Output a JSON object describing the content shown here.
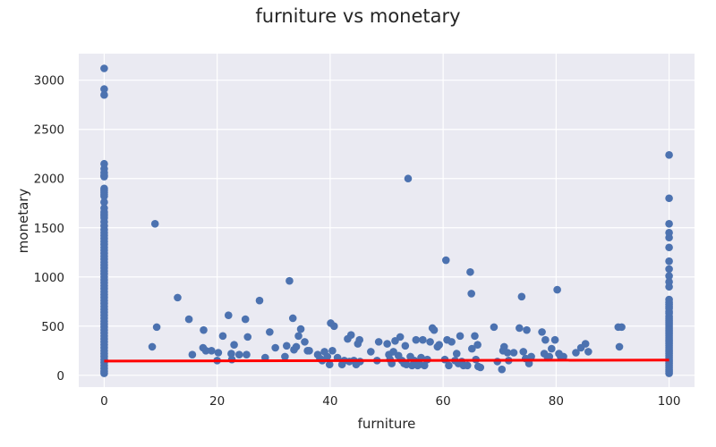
{
  "chart_data": {
    "type": "scatter",
    "title": "furniture vs monetary",
    "xlabel": "furniture",
    "ylabel": "monetary",
    "xlim": [
      -4.5,
      104.5
    ],
    "ylim": [
      -120,
      3270
    ],
    "xticks": [
      0,
      20,
      40,
      60,
      80,
      100
    ],
    "yticks": [
      0,
      500,
      1000,
      1500,
      2000,
      2500,
      3000
    ],
    "grid": true,
    "colors": {
      "background": "#eaeaf2",
      "grid": "#ffffff",
      "points": "#4c72b0",
      "line": "#ff0000"
    },
    "series": [
      {
        "kind": "points",
        "x_zero_y": [
          3120,
          2910,
          2850,
          2150,
          2100,
          2060,
          2030,
          2020,
          1900,
          1880,
          1860,
          1840,
          1820,
          1760,
          1700,
          1660,
          1640,
          1620,
          1600,
          1560,
          1520,
          1480,
          1450,
          1420,
          1390,
          1360,
          1330,
          1300,
          1270,
          1240,
          1210,
          1180,
          1150,
          1120,
          1090,
          1060,
          1030,
          1000,
          970,
          940,
          910,
          880,
          850,
          820,
          790,
          760,
          730,
          700,
          670,
          640,
          610,
          580,
          550,
          520,
          490,
          460,
          430,
          400,
          370,
          340,
          310,
          280,
          250,
          220,
          190,
          160,
          130,
          100,
          70,
          40,
          20
        ],
        "x_hundred_y": [
          2240,
          1800,
          1540,
          1450,
          1400,
          1300,
          1160,
          1080,
          1010,
          950,
          900,
          770,
          740,
          720,
          700,
          680,
          650,
          630,
          600,
          580,
          560,
          540,
          520,
          500,
          480,
          460,
          440,
          420,
          400,
          380,
          360,
          340,
          320,
          300,
          280,
          260,
          240,
          220,
          200,
          180,
          160,
          140,
          120,
          100,
          80,
          60,
          40,
          20
        ],
        "xy": [
          [
            9,
            1540
          ],
          [
            8.5,
            290
          ],
          [
            9.3,
            490
          ],
          [
            13,
            790
          ],
          [
            15,
            570
          ],
          [
            15.6,
            210
          ],
          [
            17.5,
            280
          ],
          [
            17.6,
            460
          ],
          [
            18,
            250
          ],
          [
            19,
            250
          ],
          [
            20,
            150
          ],
          [
            20.2,
            230
          ],
          [
            21,
            400
          ],
          [
            22,
            610
          ],
          [
            22.5,
            220
          ],
          [
            22.6,
            160
          ],
          [
            23,
            310
          ],
          [
            23.9,
            210
          ],
          [
            25,
            570
          ],
          [
            25.2,
            210
          ],
          [
            25.4,
            390
          ],
          [
            27.5,
            760
          ],
          [
            28.5,
            180
          ],
          [
            29.3,
            440
          ],
          [
            30.3,
            280
          ],
          [
            32,
            190
          ],
          [
            32.3,
            300
          ],
          [
            32.8,
            960
          ],
          [
            33.4,
            580
          ],
          [
            33.6,
            260
          ],
          [
            34,
            290
          ],
          [
            34.4,
            400
          ],
          [
            34.8,
            470
          ],
          [
            35.5,
            340
          ],
          [
            36,
            250
          ],
          [
            36.3,
            250
          ],
          [
            37.8,
            210
          ],
          [
            38.2,
            170
          ],
          [
            38.6,
            150
          ],
          [
            39,
            240
          ],
          [
            39.5,
            190
          ],
          [
            39.9,
            110
          ],
          [
            40.1,
            530
          ],
          [
            40.4,
            250
          ],
          [
            40.7,
            500
          ],
          [
            41.3,
            180
          ],
          [
            42.1,
            110
          ],
          [
            42.5,
            150
          ],
          [
            43.1,
            370
          ],
          [
            43.4,
            140
          ],
          [
            43.7,
            410
          ],
          [
            44.2,
            150
          ],
          [
            44.6,
            110
          ],
          [
            44.9,
            320
          ],
          [
            45.2,
            360
          ],
          [
            45.3,
            140
          ],
          [
            47.2,
            240
          ],
          [
            48.3,
            150
          ],
          [
            48.6,
            340
          ],
          [
            50.1,
            320
          ],
          [
            50.4,
            210
          ],
          [
            50.6,
            160
          ],
          [
            50.9,
            120
          ],
          [
            51.2,
            240
          ],
          [
            51.5,
            350
          ],
          [
            52.1,
            200
          ],
          [
            52.4,
            390
          ],
          [
            52.7,
            150
          ],
          [
            53.1,
            120
          ],
          [
            53.3,
            300
          ],
          [
            53.5,
            110
          ],
          [
            53.8,
            2000
          ],
          [
            54.2,
            190
          ],
          [
            54.5,
            100
          ],
          [
            54.9,
            150
          ],
          [
            55.2,
            360
          ],
          [
            55.5,
            100
          ],
          [
            55.8,
            110
          ],
          [
            56.1,
            180
          ],
          [
            56.4,
            360
          ],
          [
            56.7,
            100
          ],
          [
            57.2,
            160
          ],
          [
            57.7,
            340
          ],
          [
            58.1,
            480
          ],
          [
            58.4,
            460
          ],
          [
            59,
            290
          ],
          [
            59.3,
            310
          ],
          [
            60.3,
            160
          ],
          [
            60.5,
            1170
          ],
          [
            60.7,
            360
          ],
          [
            61,
            100
          ],
          [
            61.5,
            340
          ],
          [
            62.1,
            150
          ],
          [
            62.4,
            220
          ],
          [
            62.7,
            120
          ],
          [
            63,
            400
          ],
          [
            63.3,
            140
          ],
          [
            63.6,
            100
          ],
          [
            64.3,
            100
          ],
          [
            64.8,
            1050
          ],
          [
            65,
            830
          ],
          [
            65.1,
            270
          ],
          [
            65.6,
            400
          ],
          [
            65.8,
            160
          ],
          [
            66.1,
            310
          ],
          [
            66.2,
            90
          ],
          [
            66.6,
            80
          ],
          [
            69,
            490
          ],
          [
            69.6,
            140
          ],
          [
            70.4,
            60
          ],
          [
            70.6,
            250
          ],
          [
            70.8,
            290
          ],
          [
            71.4,
            230
          ],
          [
            71.6,
            150
          ],
          [
            72.5,
            230
          ],
          [
            73.5,
            480
          ],
          [
            73.9,
            800
          ],
          [
            74.2,
            240
          ],
          [
            74.6,
            170
          ],
          [
            74.8,
            460
          ],
          [
            75.2,
            120
          ],
          [
            75.6,
            190
          ],
          [
            77.5,
            440
          ],
          [
            77.9,
            220
          ],
          [
            78.1,
            360
          ],
          [
            78.5,
            180
          ],
          [
            78.8,
            190
          ],
          [
            79.2,
            270
          ],
          [
            79.8,
            360
          ],
          [
            80.2,
            870
          ],
          [
            80.5,
            220
          ],
          [
            80.8,
            190
          ],
          [
            81.3,
            190
          ],
          [
            83.5,
            230
          ],
          [
            84.4,
            280
          ],
          [
            85.2,
            320
          ],
          [
            85.7,
            240
          ],
          [
            91,
            490
          ],
          [
            91.2,
            290
          ],
          [
            91.6,
            490
          ]
        ]
      },
      {
        "kind": "trend-line",
        "x": [
          0,
          100
        ],
        "y": [
          145,
          155
        ]
      }
    ]
  }
}
